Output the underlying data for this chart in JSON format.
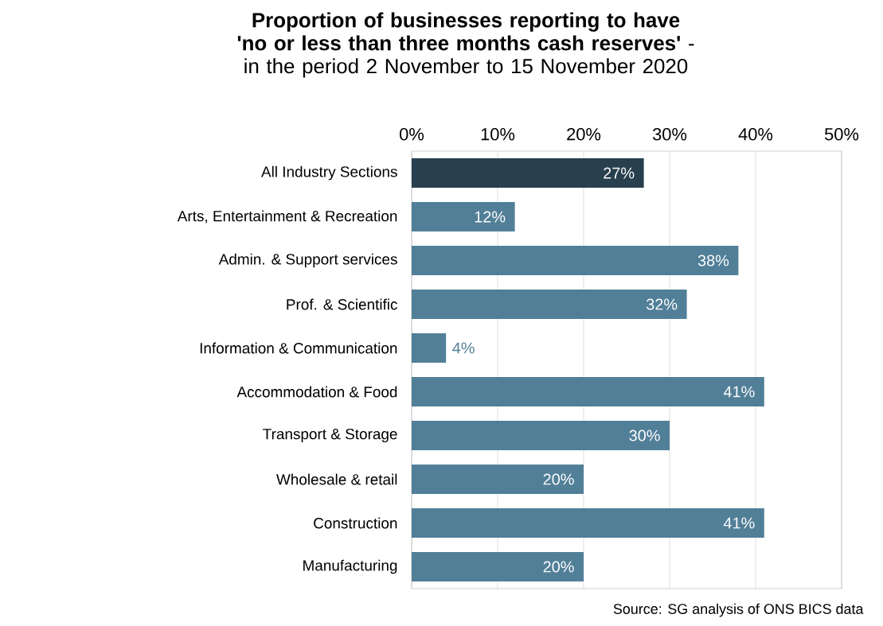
{
  "chart_data": {
    "type": "bar",
    "orientation": "horizontal",
    "title": "**Proportion of businesses reporting to have 'no or less than three months cash reserves'** - in the period 2 November to 15 November 2020",
    "categories": [
      "All Industry Sections",
      "Arts, Entertainment & Recreation",
      "Admin. & Support services",
      "Prof. & Scientific",
      "Information & Communication",
      "Accommodation & Food",
      "Transport & Storage",
      "Wholesale & retail",
      "Construction",
      "Manufacturing"
    ],
    "values": [
      27,
      12,
      38,
      32,
      4,
      41,
      30,
      20,
      41,
      20
    ],
    "value_labels": [
      "27%",
      "12%",
      "38%",
      "32%",
      "4%",
      "41%",
      "30%",
      "20%",
      "41%",
      "20%"
    ],
    "colors": [
      "#283f4e",
      "#527f98",
      "#527f98",
      "#527f98",
      "#527f98",
      "#527f98",
      "#527f98",
      "#527f98",
      "#527f98",
      "#527f98"
    ],
    "xlim": [
      0,
      50
    ],
    "xticks": [
      {
        "value": 0,
        "label": "0%"
      },
      {
        "value": 10,
        "label": "10%"
      },
      {
        "value": 20,
        "label": "20%"
      },
      {
        "value": 30,
        "label": "30%"
      },
      {
        "value": 40,
        "label": "40%"
      },
      {
        "value": 50,
        "label": "50%"
      }
    ],
    "grid": "x",
    "annotations": [
      "Source: SG analysis of ONS BICS data"
    ]
  }
}
